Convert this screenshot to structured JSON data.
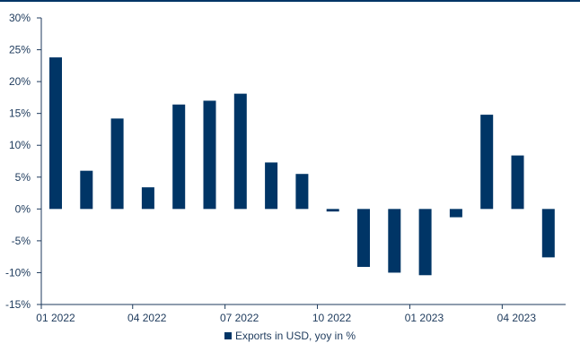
{
  "colors": {
    "bar": "#003566",
    "axis": "#1d3a5c",
    "topline": "#003566"
  },
  "chart_data": {
    "type": "bar",
    "categories": [
      "01 2022",
      "02 2022",
      "03 2022",
      "04 2022",
      "05 2022",
      "06 2022",
      "07 2022",
      "08 2022",
      "09 2022",
      "10 2022",
      "11 2022",
      "12 2022",
      "01 2023",
      "02 2023",
      "03 2023",
      "04 2023",
      "05 2023"
    ],
    "x_tick_labels": [
      "01 2022",
      "04 2022",
      "07 2022",
      "10 2022",
      "01 2023",
      "04 2023"
    ],
    "series": [
      {
        "name": "Exports in USD, yoy in %",
        "values": [
          23.8,
          6.0,
          14.2,
          3.4,
          16.4,
          17.0,
          18.1,
          7.3,
          5.5,
          -0.4,
          -9.1,
          -10.0,
          -10.4,
          -1.3,
          14.8,
          8.4,
          -7.6
        ]
      }
    ],
    "y_ticks": [
      "30%",
      "25%",
      "20%",
      "15%",
      "10%",
      "5%",
      "0%",
      "-5%",
      "-10%",
      "-15%"
    ],
    "ylim": [
      -15,
      30
    ],
    "legend_position": "bottom-center",
    "grid": false
  }
}
